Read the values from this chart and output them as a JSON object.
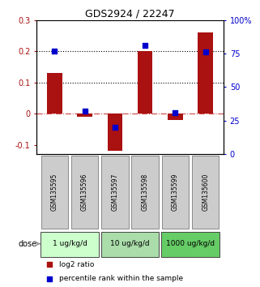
{
  "title": "GDS2924 / 22247",
  "samples": [
    "GSM135595",
    "GSM135596",
    "GSM135597",
    "GSM135598",
    "GSM135599",
    "GSM135600"
  ],
  "log2_ratio": [
    0.13,
    -0.01,
    -0.12,
    0.2,
    -0.02,
    0.26
  ],
  "percentile_rank": [
    77,
    32,
    20,
    81,
    31,
    76
  ],
  "bar_color": "#aa1111",
  "dot_color": "#0000cc",
  "ylim_left": [
    -0.13,
    0.3
  ],
  "ylim_right": [
    0,
    100
  ],
  "yticks_left": [
    -0.1,
    0.0,
    0.1,
    0.2,
    0.3
  ],
  "yticks_right": [
    0,
    25,
    50,
    75,
    100
  ],
  "hlines": [
    0.0,
    0.1,
    0.2
  ],
  "hline_colors": [
    "#cc4444",
    "#000000",
    "#000000"
  ],
  "hline_styles": [
    "dashdot",
    "dotted",
    "dotted"
  ],
  "dose_groups": [
    {
      "label": "1 ug/kg/d",
      "samples": [
        0,
        1
      ],
      "color": "#ccffcc"
    },
    {
      "label": "10 ug/kg/d",
      "samples": [
        2,
        3
      ],
      "color": "#aaddaa"
    },
    {
      "label": "1000 ug/kg/d",
      "samples": [
        4,
        5
      ],
      "color": "#66cc66"
    }
  ],
  "dose_label": "dose",
  "legend_bar_label": "log2 ratio",
  "legend_dot_label": "percentile rank within the sample",
  "sample_box_color": "#cccccc",
  "bar_width": 0.5
}
